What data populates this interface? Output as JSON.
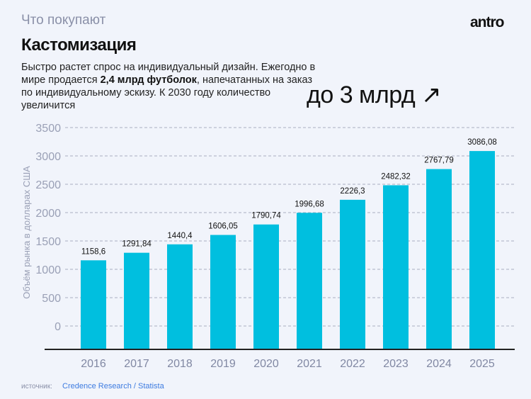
{
  "header": {
    "kicker": "Что покупают",
    "title": "Кастомизация",
    "logo": "antro"
  },
  "description": {
    "part1": "Быстро растет спрос на индивидуальный дизайн. Ежегодно в мире продается ",
    "bold": "2,4 млрд футболок",
    "part2": ", напечатанных на заказ по индивидуальному эскизу. К 2030 году количество увеличится"
  },
  "highlight": "до 3 млрд ↗",
  "source": {
    "label": "источник:",
    "text": "Credence Research / Statista"
  },
  "chart_data": {
    "type": "bar",
    "ylabel": "Объём рынка в долларах США",
    "categories": [
      "2016",
      "2017",
      "2018",
      "2019",
      "2020",
      "2021",
      "2022",
      "2023",
      "2024",
      "2025"
    ],
    "values": [
      1158.6,
      1291.84,
      1440.4,
      1606.05,
      1790.74,
      1996.68,
      2226.3,
      2482.32,
      2767.79,
      3086.08
    ],
    "data_labels": [
      "1158,6",
      "1291,84",
      "1440,4",
      "1606,05",
      "1790,74",
      "1996,68",
      "2226,3",
      "2482,32",
      "2767,79",
      "3086,08"
    ],
    "yticks": [
      0,
      500,
      1000,
      1500,
      2000,
      2500,
      3000,
      3500
    ],
    "ylim": [
      0,
      3500
    ],
    "grid": true,
    "bar_color": "#00bfdf"
  }
}
